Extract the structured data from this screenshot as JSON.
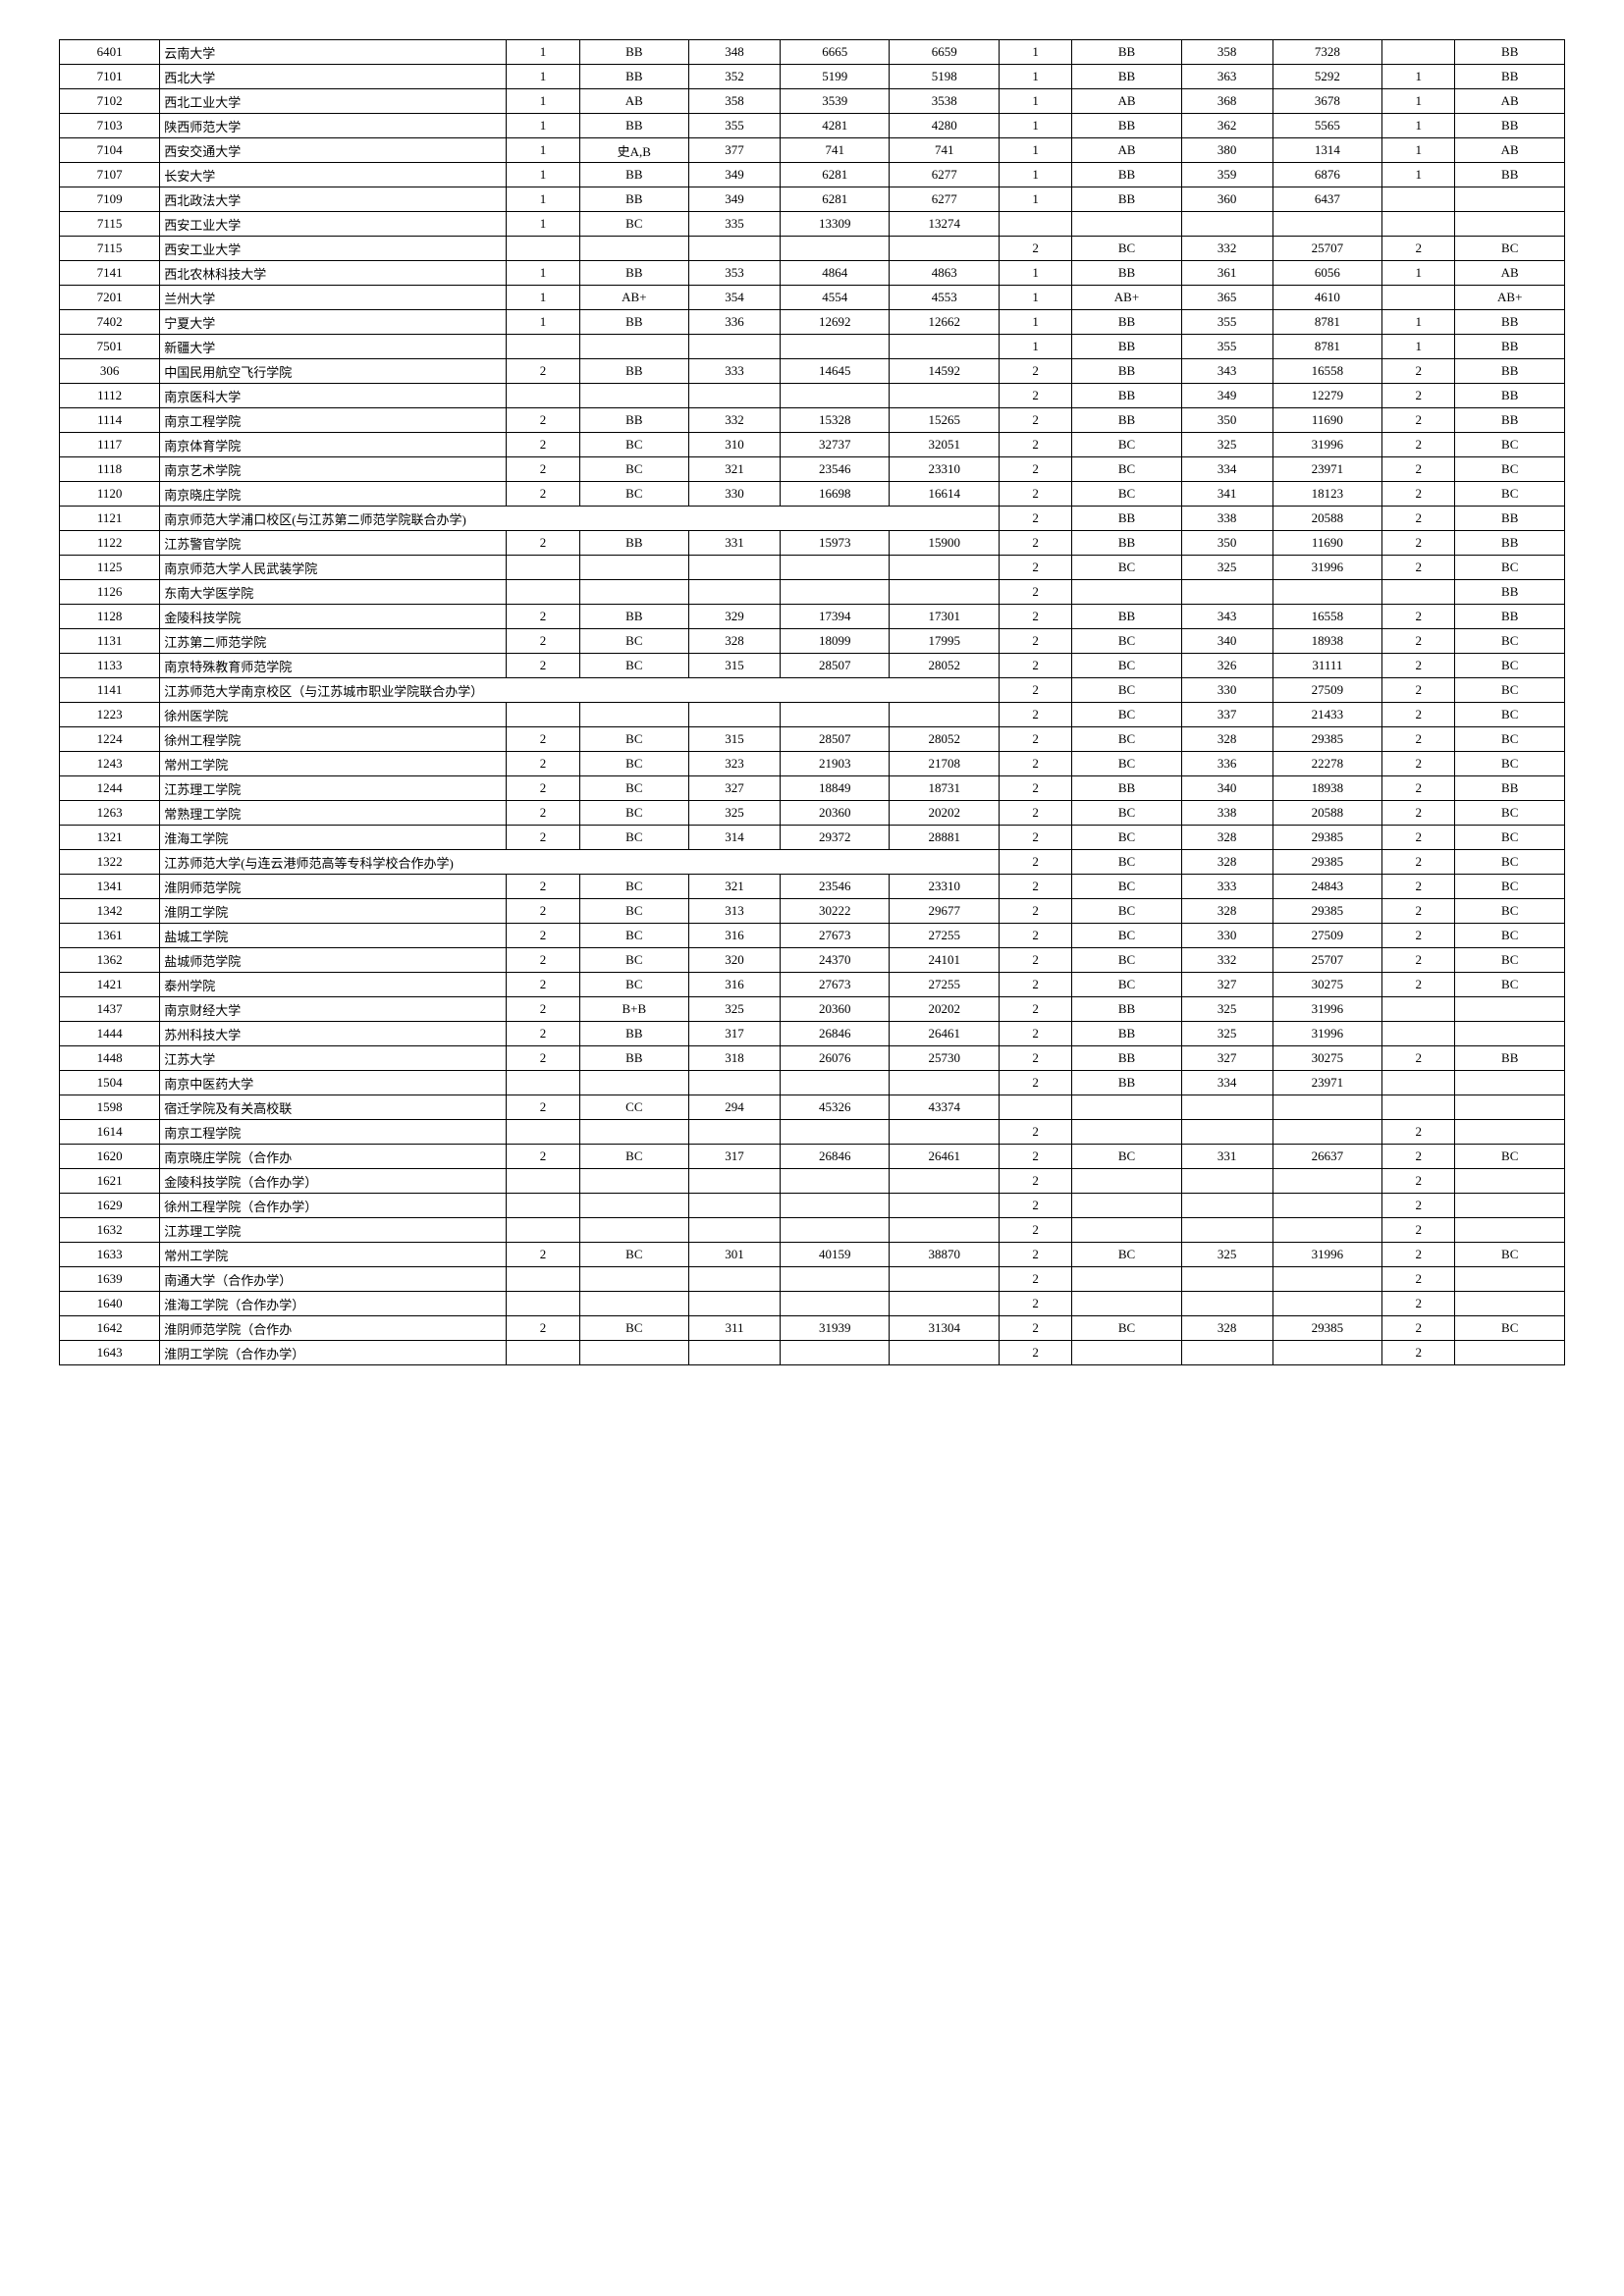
{
  "rows": [
    {
      "code": "6401",
      "name": "云南大学",
      "c2": "1",
      "c3": "BB",
      "c4": "348",
      "c5": "6665",
      "c6": "6659",
      "c7": "1",
      "c8": "BB",
      "c9": "358",
      "c10": "7328",
      "c11": "",
      "c12": "BB"
    },
    {
      "code": "7101",
      "name": "西北大学",
      "c2": "1",
      "c3": "BB",
      "c4": "352",
      "c5": "5199",
      "c6": "5198",
      "c7": "1",
      "c8": "BB",
      "c9": "363",
      "c10": "5292",
      "c11": "1",
      "c12": "BB"
    },
    {
      "code": "7102",
      "name": "西北工业大学",
      "c2": "1",
      "c3": "AB",
      "c4": "358",
      "c5": "3539",
      "c6": "3538",
      "c7": "1",
      "c8": "AB",
      "c9": "368",
      "c10": "3678",
      "c11": "1",
      "c12": "AB"
    },
    {
      "code": "7103",
      "name": "陕西师范大学",
      "c2": "1",
      "c3": "BB",
      "c4": "355",
      "c5": "4281",
      "c6": "4280",
      "c7": "1",
      "c8": "BB",
      "c9": "362",
      "c10": "5565",
      "c11": "1",
      "c12": "BB"
    },
    {
      "code": "7104",
      "name": "西安交通大学",
      "c2": "1",
      "c3": "史A,B",
      "c4": "377",
      "c5": "741",
      "c6": "741",
      "c7": "1",
      "c8": "AB",
      "c9": "380",
      "c10": "1314",
      "c11": "1",
      "c12": "AB"
    },
    {
      "code": "7107",
      "name": "长安大学",
      "c2": "1",
      "c3": "BB",
      "c4": "349",
      "c5": "6281",
      "c6": "6277",
      "c7": "1",
      "c8": "BB",
      "c9": "359",
      "c10": "6876",
      "c11": "1",
      "c12": "BB"
    },
    {
      "code": "7109",
      "name": "西北政法大学",
      "c2": "1",
      "c3": "BB",
      "c4": "349",
      "c5": "6281",
      "c6": "6277",
      "c7": "1",
      "c8": "BB",
      "c9": "360",
      "c10": "6437",
      "c11": "",
      "c12": ""
    },
    {
      "code": "7115",
      "name": "西安工业大学",
      "c2": "1",
      "c3": "BC",
      "c4": "335",
      "c5": "13309",
      "c6": "13274",
      "c7": "",
      "c8": "",
      "c9": "",
      "c10": "",
      "c11": "",
      "c12": ""
    },
    {
      "code": "7115",
      "name": "西安工业大学",
      "c2": "",
      "c3": "",
      "c4": "",
      "c5": "",
      "c6": "",
      "c7": "2",
      "c8": "BC",
      "c9": "332",
      "c10": "25707",
      "c11": "2",
      "c12": "BC"
    },
    {
      "code": "7141",
      "name": "西北农林科技大学",
      "c2": "1",
      "c3": "BB",
      "c4": "353",
      "c5": "4864",
      "c6": "4863",
      "c7": "1",
      "c8": "BB",
      "c9": "361",
      "c10": "6056",
      "c11": "1",
      "c12": "AB"
    },
    {
      "code": "7201",
      "name": "兰州大学",
      "c2": "1",
      "c3": "AB+",
      "c4": "354",
      "c5": "4554",
      "c6": "4553",
      "c7": "1",
      "c8": "AB+",
      "c9": "365",
      "c10": "4610",
      "c11": "",
      "c12": "AB+"
    },
    {
      "code": "7402",
      "name": "宁夏大学",
      "c2": "1",
      "c3": "BB",
      "c4": "336",
      "c5": "12692",
      "c6": "12662",
      "c7": "1",
      "c8": "BB",
      "c9": "355",
      "c10": "8781",
      "c11": "1",
      "c12": "BB"
    },
    {
      "code": "7501",
      "name": "新疆大学",
      "c2": "",
      "c3": "",
      "c4": "",
      "c5": "",
      "c6": "",
      "c7": "1",
      "c8": "BB",
      "c9": "355",
      "c10": "8781",
      "c11": "1",
      "c12": "BB"
    },
    {
      "code": "306",
      "name": "中国民用航空飞行学院",
      "c2": "2",
      "c3": "BB",
      "c4": "333",
      "c5": "14645",
      "c6": "14592",
      "c7": "2",
      "c8": "BB",
      "c9": "343",
      "c10": "16558",
      "c11": "2",
      "c12": "BB"
    },
    {
      "code": "1112",
      "name": "南京医科大学",
      "c2": "",
      "c3": "",
      "c4": "",
      "c5": "",
      "c6": "",
      "c7": "2",
      "c8": "BB",
      "c9": "349",
      "c10": "12279",
      "c11": "2",
      "c12": "BB"
    },
    {
      "code": "1114",
      "name": "南京工程学院",
      "c2": "2",
      "c3": "BB",
      "c4": "332",
      "c5": "15328",
      "c6": "15265",
      "c7": "2",
      "c8": "BB",
      "c9": "350",
      "c10": "11690",
      "c11": "2",
      "c12": "BB"
    },
    {
      "code": "1117",
      "name": "南京体育学院",
      "c2": "2",
      "c3": "BC",
      "c4": "310",
      "c5": "32737",
      "c6": "32051",
      "c7": "2",
      "c8": "BC",
      "c9": "325",
      "c10": "31996",
      "c11": "2",
      "c12": "BC"
    },
    {
      "code": "1118",
      "name": "南京艺术学院",
      "c2": "2",
      "c3": "BC",
      "c4": "321",
      "c5": "23546",
      "c6": "23310",
      "c7": "2",
      "c8": "BC",
      "c9": "334",
      "c10": "23971",
      "c11": "2",
      "c12": "BC"
    },
    {
      "code": "1120",
      "name": "南京晓庄学院",
      "c2": "2",
      "c3": "BC",
      "c4": "330",
      "c5": "16698",
      "c6": "16614",
      "c7": "2",
      "c8": "BC",
      "c9": "341",
      "c10": "18123",
      "c11": "2",
      "c12": "BC"
    },
    {
      "span": true,
      "code": "1121",
      "name": "南京师范大学浦口校区(与江苏第二师范学院联合办学)",
      "c7": "2",
      "c8": "BB",
      "c9": "338",
      "c10": "20588",
      "c11": "2",
      "c12": "BB"
    },
    {
      "code": "1122",
      "name": "江苏警官学院",
      "c2": "2",
      "c3": "BB",
      "c4": "331",
      "c5": "15973",
      "c6": "15900",
      "c7": "2",
      "c8": "BB",
      "c9": "350",
      "c10": "11690",
      "c11": "2",
      "c12": "BB"
    },
    {
      "code": "1125",
      "name": "南京师范大学人民武装学院",
      "c2": "",
      "c3": "",
      "c4": "",
      "c5": "",
      "c6": "",
      "c7": "2",
      "c8": "BC",
      "c9": "325",
      "c10": "31996",
      "c11": "2",
      "c12": "BC"
    },
    {
      "code": "1126",
      "name": "东南大学医学院",
      "c2": "",
      "c3": "",
      "c4": "",
      "c5": "",
      "c6": "",
      "c7": "2",
      "c8": "",
      "c9": "",
      "c10": "",
      "c11": "",
      "c12": "BB"
    },
    {
      "code": "1128",
      "name": "金陵科技学院",
      "c2": "2",
      "c3": "BB",
      "c4": "329",
      "c5": "17394",
      "c6": "17301",
      "c7": "2",
      "c8": "BB",
      "c9": "343",
      "c10": "16558",
      "c11": "2",
      "c12": "BB"
    },
    {
      "code": "1131",
      "name": "江苏第二师范学院",
      "c2": "2",
      "c3": "BC",
      "c4": "328",
      "c5": "18099",
      "c6": "17995",
      "c7": "2",
      "c8": "BC",
      "c9": "340",
      "c10": "18938",
      "c11": "2",
      "c12": "BC"
    },
    {
      "code": "1133",
      "name": "南京特殊教育师范学院",
      "c2": "2",
      "c3": "BC",
      "c4": "315",
      "c5": "28507",
      "c6": "28052",
      "c7": "2",
      "c8": "BC",
      "c9": "326",
      "c10": "31111",
      "c11": "2",
      "c12": "BC"
    },
    {
      "span": true,
      "code": "1141",
      "name": "江苏师范大学南京校区（与江苏城市职业学院联合办学）",
      "c7": "2",
      "c8": "BC",
      "c9": "330",
      "c10": "27509",
      "c11": "2",
      "c12": "BC"
    },
    {
      "code": "1223",
      "name": "徐州医学院",
      "c2": "",
      "c3": "",
      "c4": "",
      "c5": "",
      "c6": "",
      "c7": "2",
      "c8": "BC",
      "c9": "337",
      "c10": "21433",
      "c11": "2",
      "c12": "BC"
    },
    {
      "code": "1224",
      "name": "徐州工程学院",
      "c2": "2",
      "c3": "BC",
      "c4": "315",
      "c5": "28507",
      "c6": "28052",
      "c7": "2",
      "c8": "BC",
      "c9": "328",
      "c10": "29385",
      "c11": "2",
      "c12": "BC"
    },
    {
      "code": "1243",
      "name": "常州工学院",
      "c2": "2",
      "c3": "BC",
      "c4": "323",
      "c5": "21903",
      "c6": "21708",
      "c7": "2",
      "c8": "BC",
      "c9": "336",
      "c10": "22278",
      "c11": "2",
      "c12": "BC"
    },
    {
      "code": "1244",
      "name": "江苏理工学院",
      "c2": "2",
      "c3": "BC",
      "c4": "327",
      "c5": "18849",
      "c6": "18731",
      "c7": "2",
      "c8": "BB",
      "c9": "340",
      "c10": "18938",
      "c11": "2",
      "c12": "BB"
    },
    {
      "code": "1263",
      "name": "常熟理工学院",
      "c2": "2",
      "c3": "BC",
      "c4": "325",
      "c5": "20360",
      "c6": "20202",
      "c7": "2",
      "c8": "BC",
      "c9": "338",
      "c10": "20588",
      "c11": "2",
      "c12": "BC"
    },
    {
      "code": "1321",
      "name": "淮海工学院",
      "c2": "2",
      "c3": "BC",
      "c4": "314",
      "c5": "29372",
      "c6": "28881",
      "c7": "2",
      "c8": "BC",
      "c9": "328",
      "c10": "29385",
      "c11": "2",
      "c12": "BC"
    },
    {
      "span": true,
      "code": "1322",
      "name": "江苏师范大学(与连云港师范高等专科学校合作办学)",
      "c7": "2",
      "c8": "BC",
      "c9": "328",
      "c10": "29385",
      "c11": "2",
      "c12": "BC"
    },
    {
      "code": "1341",
      "name": "淮阴师范学院",
      "c2": "2",
      "c3": "BC",
      "c4": "321",
      "c5": "23546",
      "c6": "23310",
      "c7": "2",
      "c8": "BC",
      "c9": "333",
      "c10": "24843",
      "c11": "2",
      "c12": "BC"
    },
    {
      "code": "1342",
      "name": "淮阴工学院",
      "c2": "2",
      "c3": "BC",
      "c4": "313",
      "c5": "30222",
      "c6": "29677",
      "c7": "2",
      "c8": "BC",
      "c9": "328",
      "c10": "29385",
      "c11": "2",
      "c12": "BC"
    },
    {
      "code": "1361",
      "name": "盐城工学院",
      "c2": "2",
      "c3": "BC",
      "c4": "316",
      "c5": "27673",
      "c6": "27255",
      "c7": "2",
      "c8": "BC",
      "c9": "330",
      "c10": "27509",
      "c11": "2",
      "c12": "BC"
    },
    {
      "code": "1362",
      "name": "盐城师范学院",
      "c2": "2",
      "c3": "BC",
      "c4": "320",
      "c5": "24370",
      "c6": "24101",
      "c7": "2",
      "c8": "BC",
      "c9": "332",
      "c10": "25707",
      "c11": "2",
      "c12": "BC"
    },
    {
      "code": "1421",
      "name": "泰州学院",
      "c2": "2",
      "c3": "BC",
      "c4": "316",
      "c5": "27673",
      "c6": "27255",
      "c7": "2",
      "c8": "BC",
      "c9": "327",
      "c10": "30275",
      "c11": "2",
      "c12": "BC"
    },
    {
      "code": "1437",
      "name": "南京财经大学",
      "c2": "2",
      "c3": "B+B",
      "c4": "325",
      "c5": "20360",
      "c6": "20202",
      "c7": "2",
      "c8": "BB",
      "c9": "325",
      "c10": "31996",
      "c11": "",
      "c12": ""
    },
    {
      "code": "1444",
      "name": "苏州科技大学",
      "c2": "2",
      "c3": "BB",
      "c4": "317",
      "c5": "26846",
      "c6": "26461",
      "c7": "2",
      "c8": "BB",
      "c9": "325",
      "c10": "31996",
      "c11": "",
      "c12": ""
    },
    {
      "code": "1448",
      "name": "江苏大学",
      "c2": "2",
      "c3": "BB",
      "c4": "318",
      "c5": "26076",
      "c6": "25730",
      "c7": "2",
      "c8": "BB",
      "c9": "327",
      "c10": "30275",
      "c11": "2",
      "c12": "BB"
    },
    {
      "code": "1504",
      "name": "南京中医药大学",
      "c2": "",
      "c3": "",
      "c4": "",
      "c5": "",
      "c6": "",
      "c7": "2",
      "c8": "BB",
      "c9": "334",
      "c10": "23971",
      "c11": "",
      "c12": ""
    },
    {
      "code": "1598",
      "name": "宿迁学院及有关高校联",
      "c2": "2",
      "c3": "CC",
      "c4": "294",
      "c5": "45326",
      "c6": "43374",
      "c7": "",
      "c8": "",
      "c9": "",
      "c10": "",
      "c11": "",
      "c12": ""
    },
    {
      "code": "1614",
      "name": "南京工程学院",
      "c2": "",
      "c3": "",
      "c4": "",
      "c5": "",
      "c6": "",
      "c7": "2",
      "c8": "",
      "c9": "",
      "c10": "",
      "c11": "2",
      "c12": ""
    },
    {
      "code": "1620",
      "name": "南京晓庄学院（合作办",
      "c2": "2",
      "c3": "BC",
      "c4": "317",
      "c5": "26846",
      "c6": "26461",
      "c7": "2",
      "c8": "BC",
      "c9": "331",
      "c10": "26637",
      "c11": "2",
      "c12": "BC"
    },
    {
      "code": "1621",
      "name": "金陵科技学院（合作办学）",
      "c2": "",
      "c3": "",
      "c4": "",
      "c5": "",
      "c6": "",
      "c7": "2",
      "c8": "",
      "c9": "",
      "c10": "",
      "c11": "2",
      "c12": ""
    },
    {
      "code": "1629",
      "name": "徐州工程学院（合作办学）",
      "c2": "",
      "c3": "",
      "c4": "",
      "c5": "",
      "c6": "",
      "c7": "2",
      "c8": "",
      "c9": "",
      "c10": "",
      "c11": "2",
      "c12": ""
    },
    {
      "code": "1632",
      "name": "江苏理工学院",
      "c2": "",
      "c3": "",
      "c4": "",
      "c5": "",
      "c6": "",
      "c7": "2",
      "c8": "",
      "c9": "",
      "c10": "",
      "c11": "2",
      "c12": ""
    },
    {
      "code": "1633",
      "name": "常州工学院",
      "c2": "2",
      "c3": "BC",
      "c4": "301",
      "c5": "40159",
      "c6": "38870",
      "c7": "2",
      "c8": "BC",
      "c9": "325",
      "c10": "31996",
      "c11": "2",
      "c12": "BC"
    },
    {
      "code": "1639",
      "name": "南通大学（合作办学）",
      "c2": "",
      "c3": "",
      "c4": "",
      "c5": "",
      "c6": "",
      "c7": "2",
      "c8": "",
      "c9": "",
      "c10": "",
      "c11": "2",
      "c12": ""
    },
    {
      "code": "1640",
      "name": "淮海工学院（合作办学）",
      "c2": "",
      "c3": "",
      "c4": "",
      "c5": "",
      "c6": "",
      "c7": "2",
      "c8": "",
      "c9": "",
      "c10": "",
      "c11": "2",
      "c12": ""
    },
    {
      "code": "1642",
      "name": "淮阴师范学院（合作办",
      "c2": "2",
      "c3": "BC",
      "c4": "311",
      "c5": "31939",
      "c6": "31304",
      "c7": "2",
      "c8": "BC",
      "c9": "328",
      "c10": "29385",
      "c11": "2",
      "c12": "BC"
    },
    {
      "code": "1643",
      "name": "淮阴工学院（合作办学）",
      "c2": "",
      "c3": "",
      "c4": "",
      "c5": "",
      "c6": "",
      "c7": "2",
      "c8": "",
      "c9": "",
      "c10": "",
      "c11": "2",
      "c12": ""
    }
  ]
}
